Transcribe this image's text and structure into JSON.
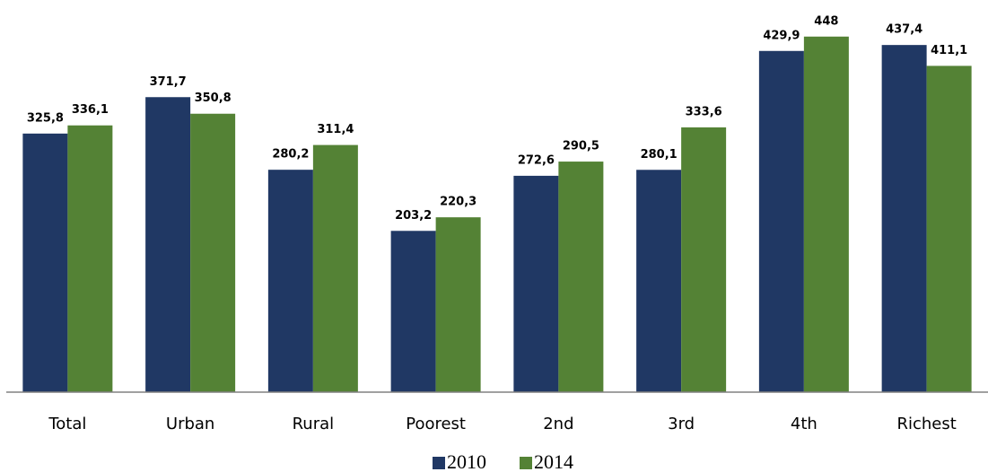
{
  "chart_data": {
    "type": "bar",
    "categories": [
      "Total",
      "Urban",
      "Rural",
      "Poorest",
      "2nd",
      "3rd",
      "4th",
      "Richest"
    ],
    "series": [
      {
        "name": "2010",
        "color": "#203864",
        "values": [
          325.8,
          371.7,
          280.2,
          203.2,
          272.6,
          280.1,
          429.9,
          437.4
        ],
        "value_labels": [
          "325,8",
          "371,7",
          "280,2",
          "203,2",
          "272,6",
          "280,1",
          "429,9",
          "437,4"
        ]
      },
      {
        "name": "2014",
        "color": "#548235",
        "values": [
          336.1,
          350.8,
          311.4,
          220.3,
          290.5,
          333.6,
          448,
          411.1
        ],
        "value_labels": [
          "336,1",
          "350,8",
          "311,4",
          "220,3",
          "290,5",
          "333,6",
          "448",
          "411,1"
        ]
      }
    ],
    "ylim": [
      0,
      450
    ],
    "legend": "bottom"
  }
}
